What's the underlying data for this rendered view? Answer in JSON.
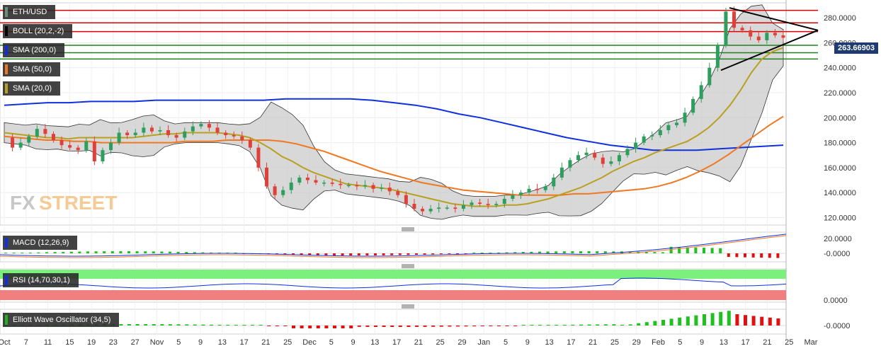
{
  "watermark": {
    "fx": "FX",
    "street": "STREET"
  },
  "overlay_labels": [
    {
      "text": "ETH/USD",
      "color": "#6b8e7a"
    },
    {
      "text": "BOLL (20,2,-2)",
      "color": "#000000"
    },
    {
      "text": "SMA (200,0)",
      "color": "#1030e0"
    },
    {
      "text": "SMA (50,0)",
      "color": "#f07820"
    },
    {
      "text": "SMA (20,0)",
      "color": "#b8a020"
    }
  ],
  "price_tag": "263.66903",
  "sub_labels": {
    "macd": "MACD (12,26,9)",
    "rsi": "RSI (14,70,30,1)",
    "ewo": "Elliott Wave Oscillator (34,5)"
  },
  "colors": {
    "up": "#2e9e5e",
    "down": "#e0403a",
    "sma200": "#1030e0",
    "sma50": "#f07820",
    "sma20": "#b8a020",
    "boll": "#c8c8c8",
    "resistance": "#e00000",
    "support": "#208020"
  },
  "chart_data": {
    "type": "line",
    "price_axis": {
      "ylim": [
        114,
        292
      ],
      "ticks": [
        120,
        140,
        160,
        180,
        200,
        220,
        240,
        260,
        280
      ],
      "tick_labels": [
        "120.0000",
        "140.0000",
        "160.0000",
        "180.0000",
        "200.0000",
        "220.0000",
        "240.0000",
        "260.0000",
        "280.0000"
      ]
    },
    "x_ticks": [
      "Oct",
      "7",
      "11",
      "15",
      "19",
      "23",
      "27",
      "Nov",
      "5",
      "9",
      "13",
      "17",
      "21",
      "25",
      "Dec",
      "5",
      "9",
      "13",
      "17",
      "21",
      "25",
      "29",
      "Jan",
      "5",
      "9",
      "13",
      "17",
      "21",
      "25",
      "29",
      "Feb",
      "5",
      "9",
      "13",
      "17",
      "21",
      "25",
      "Mar"
    ],
    "price_close": [
      184,
      176,
      180,
      185,
      191,
      187,
      182,
      178,
      176,
      174,
      181,
      165,
      174,
      180,
      188,
      186,
      188,
      192,
      189,
      190,
      186,
      184,
      189,
      193,
      195,
      192,
      188,
      186,
      185,
      182,
      176,
      160,
      145,
      138,
      142,
      148,
      152,
      150,
      148,
      148,
      147,
      146,
      146,
      145,
      146,
      143,
      144,
      141,
      138,
      131,
      127,
      125,
      127,
      128,
      128,
      127,
      130,
      132,
      131,
      130,
      131,
      135,
      138,
      140,
      143,
      142,
      145,
      152,
      160,
      166,
      170,
      172,
      168,
      163,
      165,
      170,
      175,
      180,
      185,
      186,
      190,
      194,
      196,
      204,
      215,
      226,
      240,
      258,
      285,
      272,
      270,
      265,
      262,
      268,
      266,
      264
    ],
    "sma20": [
      188,
      187,
      186,
      185,
      184,
      184,
      183,
      184,
      184,
      184,
      184,
      184,
      184,
      185,
      186,
      187,
      187,
      188,
      188,
      188,
      188,
      187,
      186,
      184,
      180,
      175,
      169,
      165,
      160,
      156,
      153,
      150,
      147,
      146,
      145,
      144,
      143,
      141,
      139,
      137,
      135,
      133,
      131,
      130,
      129,
      129,
      129,
      130,
      130,
      131,
      133,
      135,
      138,
      141,
      144,
      148,
      152,
      157,
      161,
      165,
      168,
      172,
      175,
      178,
      181,
      186,
      192,
      200,
      210,
      222,
      236,
      247,
      253,
      256
    ],
    "sma50": [
      185,
      184,
      183,
      182,
      182,
      181,
      181,
      180,
      180,
      180,
      180,
      180,
      180,
      181,
      181,
      181,
      182,
      182,
      182,
      182,
      181,
      179,
      176,
      173,
      169,
      165,
      161,
      157,
      154,
      151,
      148,
      146,
      144,
      142,
      141,
      140,
      139,
      138,
      138,
      138,
      138,
      139,
      139,
      140,
      141,
      142,
      143,
      145,
      148,
      152,
      157,
      163,
      170,
      178,
      186,
      194,
      201
    ],
    "sma200": [
      210,
      211,
      212,
      212,
      213,
      213,
      213,
      214,
      214,
      214,
      214,
      214,
      214,
      215,
      215,
      215,
      215,
      214,
      212,
      210,
      207,
      203,
      200,
      196,
      192,
      188,
      184,
      181,
      178,
      176,
      174,
      174,
      174,
      175,
      176,
      177,
      178
    ],
    "resistance": [
      286,
      276,
      269
    ],
    "support": [
      258,
      252,
      247
    ],
    "macd": {
      "zero_label": "-0.0000",
      "top_label": "20.0000"
    },
    "rsi": {
      "overbought": 70,
      "oversold": 30,
      "zero_label": "0.0000"
    },
    "ewo": {
      "zero_label": "-0.0000"
    }
  }
}
